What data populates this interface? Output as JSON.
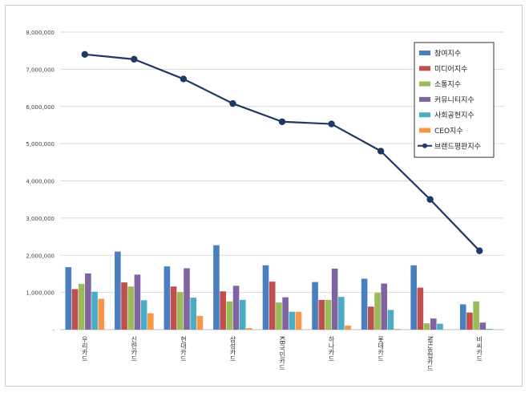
{
  "chart_data": {
    "type": "bar",
    "categories": [
      "우리카드",
      "신한카드",
      "현대카드",
      "삼성카드",
      "KB국민카드",
      "하나카드",
      "롯데카드",
      "NH농협카드",
      "비씨카드"
    ],
    "series": [
      {
        "name": "참여지수",
        "kind": "bar",
        "color": "#4a7ebf",
        "values": [
          1680000,
          2100000,
          1700000,
          2270000,
          1730000,
          1280000,
          1370000,
          1730000,
          680000
        ]
      },
      {
        "name": "미디어지수",
        "kind": "bar",
        "color": "#c0504d",
        "values": [
          1090000,
          1270000,
          1160000,
          1030000,
          1290000,
          800000,
          620000,
          1130000,
          460000
        ]
      },
      {
        "name": "소통지수",
        "kind": "bar",
        "color": "#9bbb59",
        "values": [
          1230000,
          1160000,
          1010000,
          760000,
          730000,
          800000,
          990000,
          170000,
          760000
        ]
      },
      {
        "name": "커뮤니티지수",
        "kind": "bar",
        "color": "#8064a2",
        "values": [
          1510000,
          1480000,
          1650000,
          1180000,
          870000,
          1640000,
          1240000,
          300000,
          190000
        ]
      },
      {
        "name": "사회공헌지수",
        "kind": "bar",
        "color": "#4bacc6",
        "values": [
          1020000,
          790000,
          860000,
          800000,
          480000,
          880000,
          530000,
          160000,
          20000
        ]
      },
      {
        "name": "CEO지수",
        "kind": "bar",
        "color": "#f79646",
        "values": [
          830000,
          440000,
          370000,
          40000,
          480000,
          110000,
          20000,
          0,
          0
        ]
      },
      {
        "name": "브랜드평판지수",
        "kind": "line",
        "color": "#1f3864",
        "values": [
          7400000,
          7270000,
          6740000,
          6080000,
          5590000,
          5530000,
          4800000,
          3500000,
          2120000
        ]
      }
    ],
    "yticks": [
      "-",
      "1,000,000",
      "2,000,000",
      "3,000,000",
      "4,000,000",
      "5,000,000",
      "6,000,000",
      "7,000,000",
      "8,000,000"
    ],
    "ylim": [
      0,
      8000000
    ],
    "grid": true,
    "legend": "top-right",
    "title": "",
    "xlabel": "",
    "ylabel": ""
  }
}
